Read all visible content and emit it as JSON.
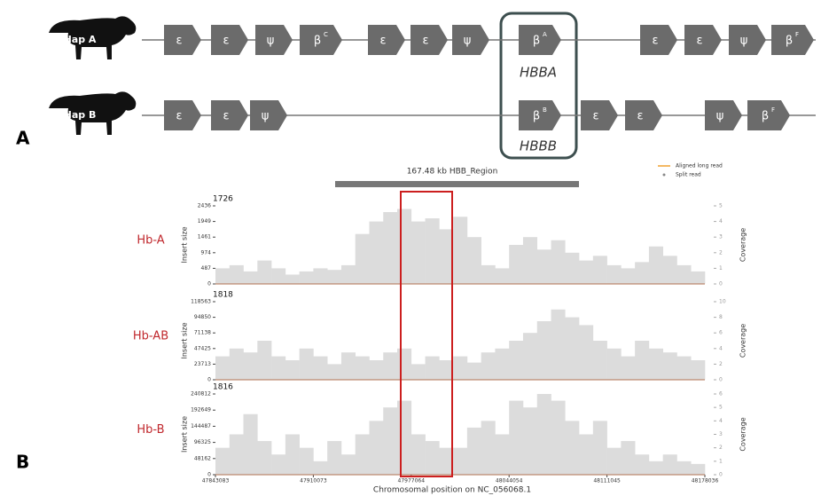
{
  "panel_a": {
    "label": "A",
    "haplotypes": [
      {
        "name": "Hap A",
        "genes": [
          {
            "symbol": "ε"
          },
          {
            "symbol": "ε"
          },
          {
            "symbol": "ψ"
          },
          {
            "symbol": "β",
            "sup": "C"
          },
          {
            "symbol": "ε"
          },
          {
            "symbol": "ε"
          },
          {
            "symbol": "ψ"
          },
          {
            "symbol": "β",
            "sup": "A"
          },
          {
            "symbol": "ε"
          },
          {
            "symbol": "ε"
          },
          {
            "symbol": "ψ"
          },
          {
            "symbol": "β",
            "sup": "F"
          }
        ]
      },
      {
        "name": "Hap B",
        "genes": [
          {
            "symbol": "ε"
          },
          {
            "symbol": "ε"
          },
          {
            "symbol": "ψ"
          },
          {
            "symbol": "β",
            "sup": "B"
          },
          {
            "symbol": "ε"
          },
          {
            "symbol": "ε"
          },
          {
            "symbol": "ψ"
          },
          {
            "symbol": "β",
            "sup": "F"
          }
        ]
      }
    ],
    "highlight_labels": [
      "HBBA",
      "HBBB"
    ]
  },
  "panel_b": {
    "label": "B",
    "region_label": "167.48 kb HBB_Region",
    "legend": [
      "Aligned long read",
      "Split read"
    ],
    "x_axis_label": "Chromosomal position on NC_056068.1",
    "xlim": [
      47843083,
      48178036
    ],
    "xticks": [
      47843083,
      47910073,
      47977064,
      48044054,
      48111045,
      48178036
    ],
    "tracks": [
      {
        "name": "Hb-A",
        "count": 1726,
        "y_label": "Insert size",
        "y2_label": "Coverage",
        "ylim": [
          0,
          2436
        ],
        "yticks": [
          0,
          487,
          974,
          1461,
          1949,
          2436
        ],
        "y2lim": [
          0,
          5
        ],
        "y2ticks": [
          0,
          1,
          2,
          3,
          4,
          5
        ],
        "coverage": [
          1,
          1.2,
          0.8,
          1.5,
          1,
          0.6,
          0.8,
          1,
          0.9,
          1.2,
          3.2,
          4,
          4.6,
          4.8,
          4,
          4.2,
          3.5,
          4.3,
          3,
          1.2,
          1,
          2.5,
          3,
          2.2,
          2.8,
          2,
          1.5,
          1.8,
          1.2,
          1,
          1.4,
          2.4,
          1.8,
          1.2,
          0.8
        ]
      },
      {
        "name": "Hb-AB",
        "count": 1818,
        "y_label": "Insert size",
        "y2_label": "Coverage",
        "ylim": [
          0,
          118563
        ],
        "yticks": [
          0,
          23713,
          47425,
          71138,
          94850,
          118563
        ],
        "y2lim": [
          0,
          10
        ],
        "y2ticks": [
          0,
          2,
          4,
          6,
          8,
          10
        ],
        "coverage": [
          3,
          4,
          3.5,
          5,
          3,
          2.5,
          4,
          3,
          2,
          3.5,
          3,
          2.5,
          3.5,
          4,
          2,
          3,
          2.5,
          3,
          2.2,
          3.5,
          4,
          5,
          6,
          7.5,
          9,
          8,
          7,
          5,
          4,
          3,
          5,
          4,
          3.5,
          3,
          2.5
        ]
      },
      {
        "name": "Hb-B",
        "count": 1816,
        "y_label": "Insert size",
        "y2_label": "Coverage",
        "ylim": [
          0,
          240812
        ],
        "yticks": [
          0,
          48162,
          96325,
          144487,
          192649,
          240812
        ],
        "y2lim": [
          0,
          6
        ],
        "y2ticks": [
          0,
          1,
          2,
          3,
          4,
          5,
          6
        ],
        "coverage": [
          2,
          3,
          4.5,
          2.5,
          1.5,
          3,
          2,
          1,
          2.5,
          1.5,
          3,
          4,
          5,
          5.5,
          3,
          2.5,
          2,
          2,
          3.5,
          4,
          3,
          5.5,
          5,
          6,
          5.5,
          4,
          3,
          4,
          2,
          2.5,
          1.5,
          1,
          1.5,
          1,
          0.8
        ]
      }
    ]
  }
}
